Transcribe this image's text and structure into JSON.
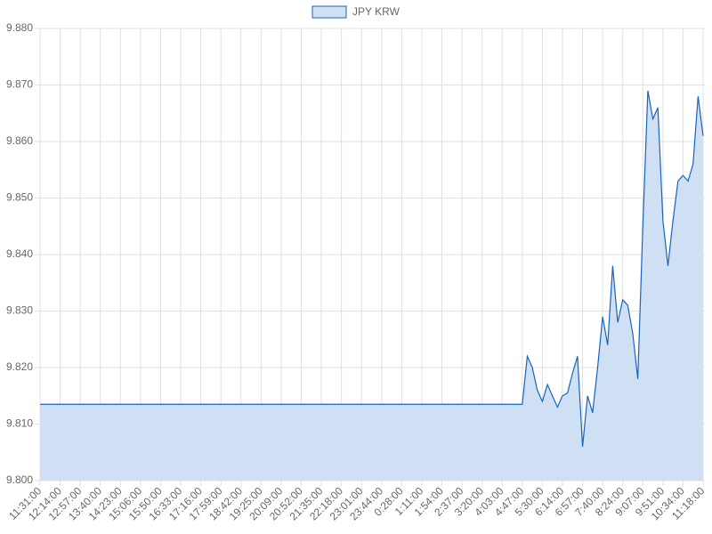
{
  "chart_data": {
    "type": "area",
    "series": [
      {
        "name": "JPY KRW",
        "color": "#1565c0",
        "fill": "#cfe0f4",
        "values": [
          9.8135,
          9.8135,
          9.8135,
          9.8135,
          9.8135,
          9.8135,
          9.8135,
          9.8135,
          9.8135,
          9.8135,
          9.8135,
          9.8135,
          9.8135,
          9.8135,
          9.8135,
          9.8135,
          9.8135,
          9.8135,
          9.8135,
          9.8135,
          9.8135,
          9.8135,
          9.8135,
          9.8135,
          9.8135,
          9.8135,
          9.8135,
          9.8135,
          9.8135,
          9.8135,
          9.8135,
          9.8135,
          9.8135,
          9.8135,
          9.8135,
          9.8135,
          9.8135,
          9.8135,
          9.8135,
          9.8135,
          9.8135,
          9.8135,
          9.8135,
          9.8135,
          9.8135,
          9.8135,
          9.8135,
          9.8135,
          9.8135,
          9.8135,
          9.8135,
          9.8135,
          9.8135,
          9.8135,
          9.8135,
          9.8135,
          9.8135,
          9.8135,
          9.8135,
          9.8135,
          9.8135,
          9.8135,
          9.8135,
          9.8135,
          9.8135,
          9.8135,
          9.8135,
          9.8135,
          9.8135,
          9.8135,
          9.8135,
          9.8135,
          9.8135,
          9.8135,
          9.8135,
          9.8135,
          9.8135,
          9.8135,
          9.8135,
          9.8135,
          9.8135,
          9.8135,
          9.8135,
          9.8135,
          9.8135,
          9.8135,
          9.8135,
          9.8135,
          9.8135,
          9.8135,
          9.8135,
          9.8135,
          9.8135,
          9.8135,
          9.8135,
          9.8135,
          9.8135,
          9.822,
          9.82,
          9.816,
          9.814,
          9.817,
          9.815,
          9.813,
          9.815,
          9.8155,
          9.819,
          9.822,
          9.806,
          9.815,
          9.812,
          9.82,
          9.829,
          9.824,
          9.838,
          9.828,
          9.832,
          9.831,
          9.826,
          9.818,
          9.845,
          9.869,
          9.864,
          9.866,
          9.846,
          9.838,
          9.846,
          9.853,
          9.854,
          9.853,
          9.856,
          9.868,
          9.861
        ]
      }
    ],
    "categories": [
      "11:31:00",
      null,
      null,
      null,
      "12:14:00",
      null,
      null,
      null,
      "12:57:00",
      null,
      null,
      null,
      "13:40:00",
      null,
      null,
      null,
      "14:23:00",
      null,
      null,
      null,
      "15:06:00",
      null,
      null,
      null,
      "15:50:00",
      null,
      null,
      null,
      "16:33:00",
      null,
      null,
      null,
      "17:16:00",
      null,
      null,
      null,
      "17:59:00",
      null,
      null,
      null,
      "18:42:00",
      null,
      null,
      null,
      "19:25:00",
      null,
      null,
      null,
      "20:09:00",
      null,
      null,
      null,
      "20:52:00",
      null,
      null,
      null,
      "21:35:00",
      null,
      null,
      null,
      "22:18:00",
      null,
      null,
      null,
      "23:01:00",
      null,
      null,
      null,
      "23:44:00",
      null,
      null,
      null,
      "0:28:00",
      null,
      null,
      null,
      "1:11:00",
      null,
      null,
      null,
      "1:54:00",
      null,
      null,
      null,
      "2:37:00",
      null,
      null,
      null,
      "3:20:00",
      null,
      null,
      null,
      "4:03:00",
      null,
      null,
      null,
      "4:47:00",
      null,
      null,
      null,
      "5:30:00",
      null,
      null,
      null,
      "6:14:00",
      null,
      null,
      null,
      "6:57:00",
      null,
      null,
      null,
      "7:40:00",
      null,
      null,
      null,
      "8:24:00",
      null,
      null,
      null,
      "9:07:00",
      null,
      null,
      null,
      "9:51:00",
      null,
      null,
      null,
      "10:34:00",
      null,
      null,
      null,
      "11:18:00"
    ],
    "ylim": [
      9.8,
      9.88
    ],
    "yticks": [
      {
        "value": 9.8,
        "label": "9.800"
      },
      {
        "value": 9.81,
        "label": "9.810"
      },
      {
        "value": 9.82,
        "label": "9.820"
      },
      {
        "value": 9.83,
        "label": "9.830"
      },
      {
        "value": 9.84,
        "label": "9.840"
      },
      {
        "value": 9.85,
        "label": "9.850"
      },
      {
        "value": 9.86,
        "label": "9.860"
      },
      {
        "value": 9.87,
        "label": "9.870"
      },
      {
        "value": 9.88,
        "label": "9.880"
      }
    ],
    "grid": true,
    "legend": "top"
  }
}
